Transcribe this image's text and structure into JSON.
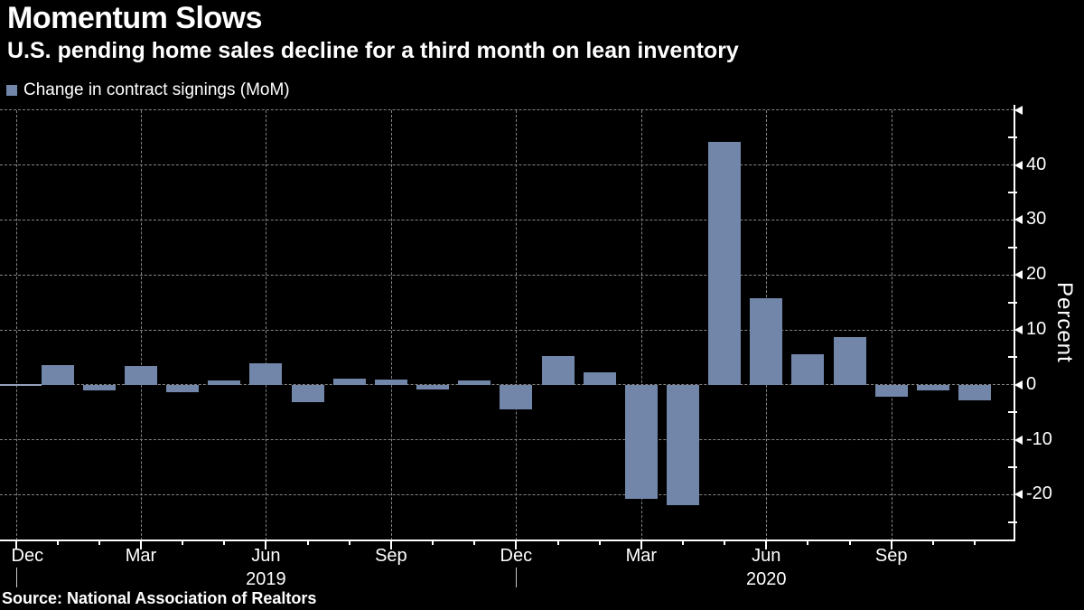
{
  "header": {
    "title": "Momentum Slows",
    "subtitle": "U.S. pending home sales decline for a third month on lean inventory"
  },
  "legend": {
    "label": "Change in contract signings (MoM)"
  },
  "y_axis": {
    "label": "Percent"
  },
  "source_line": "Source: National Association of Realtors",
  "colors": {
    "background": "#000000",
    "bar": "#7186a9",
    "text": "#ffffff",
    "grid": "#858585",
    "axis": "#ffffff",
    "zero_line": "#93a2bc"
  },
  "chart_data": {
    "type": "bar",
    "title": "Momentum Slows",
    "subtitle": "U.S. pending home sales decline for a third month on lean inventory",
    "series_label": "Change in contract signings (MoM)",
    "ylabel": "Percent",
    "ylim": [
      -28,
      51
    ],
    "grid": true,
    "legend_position": "top-left",
    "y_axis_side": "right",
    "x": [
      "Jan 2019",
      "Feb 2019",
      "Mar 2019",
      "Apr 2019",
      "May 2019",
      "Jun 2019",
      "Jul 2019",
      "Aug 2019",
      "Sep 2019",
      "Oct 2019",
      "Nov 2019",
      "Dec 2019",
      "Jan 2020",
      "Feb 2020",
      "Mar 2020",
      "Apr 2020",
      "May 2020",
      "Jun 2020",
      "Jul 2020",
      "Aug 2020",
      "Sep 2020",
      "Oct 2020",
      "Nov 2020"
    ],
    "values": [
      3.6,
      -1.1,
      3.4,
      -1.3,
      0.8,
      3.9,
      -3.2,
      1.1,
      1.0,
      -0.8,
      0.8,
      -4.5,
      5.2,
      2.2,
      -20.8,
      -21.9,
      44.2,
      15.8,
      5.6,
      8.7,
      -2.1,
      -1.1,
      -2.8
    ],
    "x_axis_start_month": "Dec 2018",
    "x_tick_labels": [
      {
        "label": "Dec",
        "month_index": 0
      },
      {
        "label": "Mar",
        "month_index": 3
      },
      {
        "label": "Jun",
        "month_index": 6
      },
      {
        "label": "Sep",
        "month_index": 9
      },
      {
        "label": "Dec",
        "month_index": 12
      },
      {
        "label": "Mar",
        "month_index": 15
      },
      {
        "label": "Jun",
        "month_index": 18
      },
      {
        "label": "Sep",
        "month_index": 21
      }
    ],
    "year_labels": [
      {
        "label": "2019",
        "month_index": 6
      },
      {
        "label": "2020",
        "month_index": 18
      }
    ],
    "year_divider_month_indices": [
      0,
      12
    ],
    "y_labeled_ticks": [
      40,
      30,
      20,
      10,
      0,
      -10,
      -20
    ],
    "y_grid_values": [
      50,
      40,
      30,
      20,
      10,
      0,
      -10,
      -20
    ],
    "y_minor_ticks": [
      45,
      35,
      25,
      15,
      5,
      -5,
      -15,
      -25
    ],
    "n_axis_months": 24
  }
}
